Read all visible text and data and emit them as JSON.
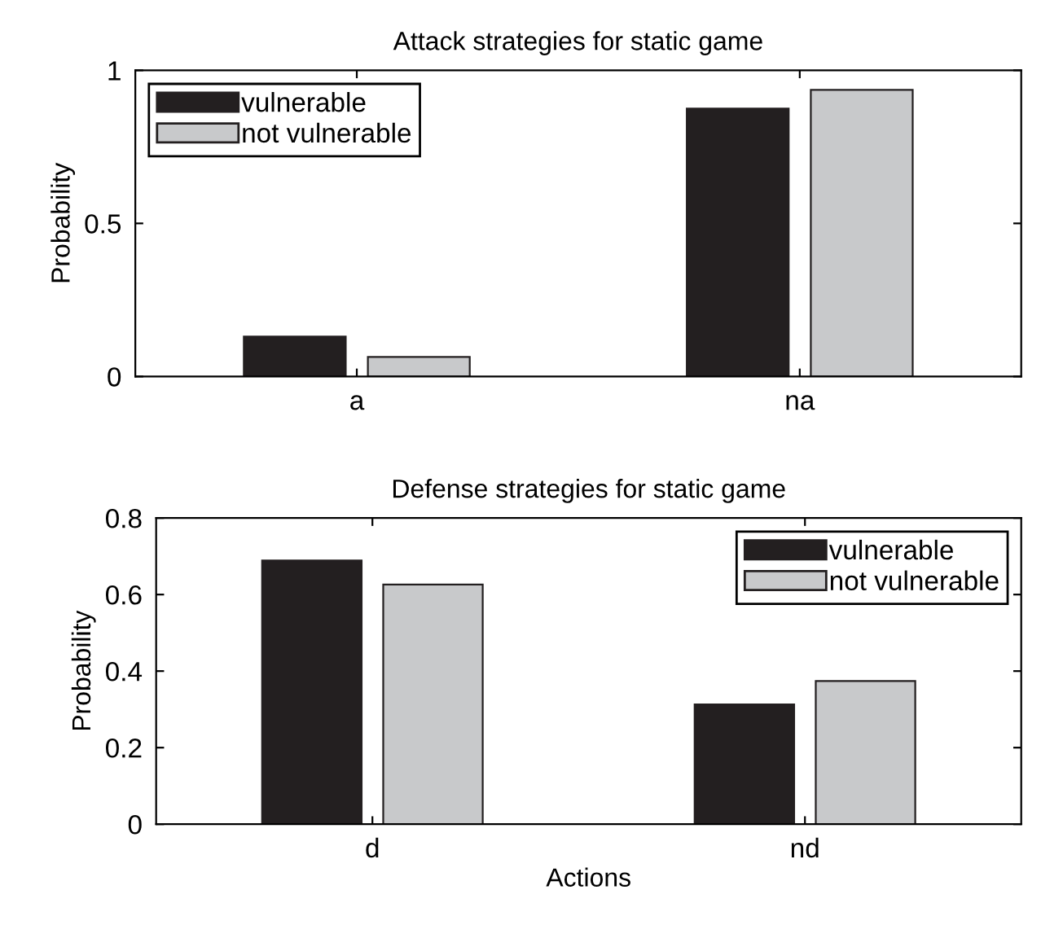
{
  "chart_data": [
    {
      "type": "bar",
      "title": "Attack strategies for static game",
      "ylabel": "Probability",
      "categories": [
        "a",
        "na"
      ],
      "series": [
        {
          "name": "vulnerable",
          "color": "#231f20",
          "values": [
            0.13,
            0.875
          ]
        },
        {
          "name": "not vulnerable",
          "color": "#c8c9cb",
          "values": [
            0.064,
            0.936
          ]
        }
      ],
      "ylim": [
        0,
        1
      ],
      "yticks": [
        0,
        0.5,
        1
      ],
      "grid": false,
      "legend": "top left"
    },
    {
      "type": "bar",
      "title": "Defense strategies for static game",
      "ylabel": "Probability",
      "xlabel": "Actions",
      "categories": [
        "d",
        "nd"
      ],
      "series": [
        {
          "name": "vulnerable",
          "color": "#231f20",
          "values": [
            0.689,
            0.313
          ]
        },
        {
          "name": "not vulnerable",
          "color": "#c8c9cb",
          "values": [
            0.626,
            0.374
          ]
        }
      ],
      "ylim": [
        0,
        0.8
      ],
      "yticks": [
        0,
        0.2,
        0.4,
        0.6,
        0.8
      ],
      "grid": false,
      "legend": "top right"
    }
  ]
}
